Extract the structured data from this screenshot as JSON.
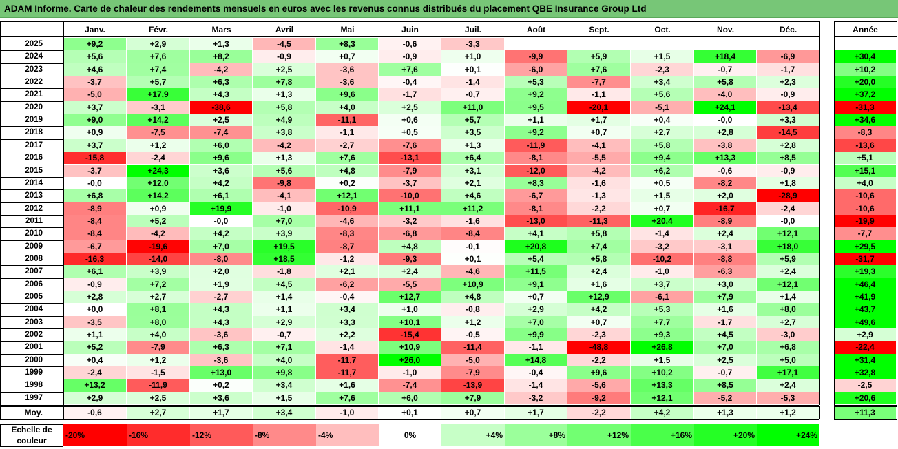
{
  "title": "ADAM Informe. Carte de chaleur des rendements mensuels en euros avec les revenus connus distribués du placement QBE Insurance Group Ltd",
  "chart_data": {
    "type": "heatmap",
    "columns": [
      "Janv.",
      "Févr.",
      "Mars",
      "Avril",
      "Mai",
      "Juin",
      "Juil.",
      "Août",
      "Sept.",
      "Oct.",
      "Nov.",
      "Déc."
    ],
    "year_column": "Année",
    "rows": [
      {
        "year": "2025",
        "values": [
          "+9,2",
          "+2,9",
          "+1,3",
          "-4,5",
          "+8,3",
          "-0,6",
          "-3,3",
          "",
          "",
          "",
          "",
          ""
        ],
        "annual": ""
      },
      {
        "year": "2024",
        "values": [
          "+5,6",
          "+7,6",
          "+8,2",
          "-0,9",
          "+0,7",
          "-0,9",
          "+1,0",
          "-9,9",
          "+5,9",
          "+1,5",
          "+18,4",
          "-6,9"
        ],
        "annual": "+30,4"
      },
      {
        "year": "2023",
        "values": [
          "+4,6",
          "+7,4",
          "-4,2",
          "+2,5",
          "-3,6",
          "+7,6",
          "+0,1",
          "-6,0",
          "+7,6",
          "-2,3",
          "-0,7",
          "-1,7"
        ],
        "annual": "+10,2"
      },
      {
        "year": "2022",
        "values": [
          "-3,7",
          "+5,7",
          "+6,3",
          "+7,8",
          "-3,6",
          "-0,4",
          "-1,4",
          "+5,3",
          "-7,7",
          "+3,4",
          "+5,8",
          "+2,3"
        ],
        "annual": "+20,0"
      },
      {
        "year": "2021",
        "values": [
          "-5,0",
          "+17,9",
          "+4,3",
          "+1,3",
          "+9,6",
          "-1,7",
          "-0,7",
          "+9,2",
          "-1,1",
          "+5,6",
          "-4,0",
          "-0,9"
        ],
        "annual": "+37,2"
      },
      {
        "year": "2020",
        "values": [
          "+3,7",
          "-3,1",
          "-38,6",
          "+5,8",
          "+4,0",
          "+2,5",
          "+11,0",
          "+9,5",
          "-20,1",
          "-5,1",
          "+24,1",
          "-13,4"
        ],
        "annual": "-31,3"
      },
      {
        "year": "2019",
        "values": [
          "+9,0",
          "+14,2",
          "+2,5",
          "+4,9",
          "-11,1",
          "+0,6",
          "+5,7",
          "+1,1",
          "+1,7",
          "+0,4",
          "-0,0",
          "+3,3"
        ],
        "annual": "+34,6"
      },
      {
        "year": "2018",
        "values": [
          "+0,9",
          "-7,5",
          "-7,4",
          "+3,8",
          "-1,1",
          "+0,5",
          "+3,5",
          "+9,2",
          "+0,7",
          "+2,7",
          "+2,8",
          "-14,5"
        ],
        "annual": "-8,3"
      },
      {
        "year": "2017",
        "values": [
          "+3,7",
          "+1,2",
          "+6,0",
          "-4,2",
          "-2,7",
          "-7,6",
          "+1,3",
          "-11,9",
          "-4,1",
          "+5,8",
          "-3,8",
          "+2,8"
        ],
        "annual": "-13,6"
      },
      {
        "year": "2016",
        "values": [
          "-15,8",
          "-2,4",
          "+9,6",
          "+1,3",
          "+7,6",
          "-13,1",
          "+6,4",
          "-8,1",
          "-5,5",
          "+9,4",
          "+13,3",
          "+8,5"
        ],
        "annual": "+5,1"
      },
      {
        "year": "2015",
        "values": [
          "-3,7",
          "+24,3",
          "+3,6",
          "+5,6",
          "+4,8",
          "-7,9",
          "+3,1",
          "-12,0",
          "-4,2",
          "+6,2",
          "-0,6",
          "-0,9"
        ],
        "annual": "+15,1"
      },
      {
        "year": "2014",
        "values": [
          "-0,0",
          "+12,0",
          "+4,2",
          "-9,8",
          "+0,2",
          "-3,7",
          "+2,1",
          "+8,3",
          "-1,6",
          "+0,5",
          "-8,2",
          "+1,8"
        ],
        "annual": "+4,0"
      },
      {
        "year": "2013",
        "values": [
          "+6,8",
          "+14,2",
          "+6,1",
          "-4,1",
          "+12,1",
          "-10,0",
          "+4,6",
          "-6,7",
          "-1,3",
          "+1,5",
          "+2,0",
          "-28,9"
        ],
        "annual": "-10,6"
      },
      {
        "year": "2012",
        "values": [
          "-8,9",
          "+0,9",
          "+19,9",
          "-1,0",
          "-10,9",
          "+11,1",
          "+11,2",
          "-8,1",
          "-2,2",
          "+0,7",
          "-16,7",
          "-2,4"
        ],
        "annual": "-10,6"
      },
      {
        "year": "2011",
        "values": [
          "-8,4",
          "+5,2",
          "-0,0",
          "+7,0",
          "-4,6",
          "-3,2",
          "-1,6",
          "-13,0",
          "-11,3",
          "+20,4",
          "-8,9",
          "-0,0"
        ],
        "annual": "-19,9"
      },
      {
        "year": "2010",
        "values": [
          "-8,4",
          "-4,2",
          "+4,2",
          "+3,9",
          "-8,3",
          "-6,8",
          "-8,4",
          "+4,1",
          "+5,8",
          "-1,4",
          "+2,4",
          "+12,1"
        ],
        "annual": "-7,7"
      },
      {
        "year": "2009",
        "values": [
          "-6,7",
          "-19,6",
          "+7,0",
          "+19,5",
          "-8,7",
          "+4,8",
          "-0,1",
          "+20,8",
          "+7,4",
          "-3,2",
          "-3,1",
          "+18,0"
        ],
        "annual": "+29,5"
      },
      {
        "year": "2008",
        "values": [
          "-16,3",
          "-14,0",
          "-8,0",
          "+18,5",
          "-1,2",
          "-9,3",
          "+0,1",
          "+5,4",
          "+5,8",
          "-10,2",
          "-8,8",
          "+5,9"
        ],
        "annual": "-31,7"
      },
      {
        "year": "2007",
        "values": [
          "+6,1",
          "+3,9",
          "+2,0",
          "-1,8",
          "+2,1",
          "+2,4",
          "-4,6",
          "+11,5",
          "+2,4",
          "-1,0",
          "-6,3",
          "+2,4"
        ],
        "annual": "+19,3"
      },
      {
        "year": "2006",
        "values": [
          "-0,9",
          "+7,2",
          "+1,9",
          "+4,5",
          "-6,2",
          "-5,5",
          "+10,9",
          "+9,1",
          "+1,6",
          "+3,7",
          "+3,0",
          "+12,1"
        ],
        "annual": "+46,4"
      },
      {
        "year": "2005",
        "values": [
          "+2,8",
          "+2,7",
          "-2,7",
          "+1,4",
          "-0,4",
          "+12,7",
          "+4,8",
          "+0,7",
          "+12,9",
          "-6,1",
          "+7,9",
          "+1,4"
        ],
        "annual": "+41,9"
      },
      {
        "year": "2004",
        "values": [
          "+0,0",
          "+8,1",
          "+4,3",
          "+1,1",
          "+3,4",
          "+1,0",
          "-0,8",
          "+2,9",
          "+4,2",
          "+5,3",
          "+1,6",
          "+8,0"
        ],
        "annual": "+43,7"
      },
      {
        "year": "2003",
        "values": [
          "-3,5",
          "+8,0",
          "+4,3",
          "+2,9",
          "+3,3",
          "+10,1",
          "+1,2",
          "+7,0",
          "+0,7",
          "+7,7",
          "-1,7",
          "+2,7"
        ],
        "annual": "+49,6"
      },
      {
        "year": "2002",
        "values": [
          "+1,1",
          "+4,0",
          "-3,6",
          "-0,7",
          "+2,2",
          "-15,4",
          "-0,5",
          "+9,9",
          "-2,3",
          "+9,3",
          "+4,5",
          "-3,0"
        ],
        "annual": "+2,9"
      },
      {
        "year": "2001",
        "values": [
          "+5,2",
          "-7,9",
          "+6,3",
          "+7,1",
          "-1,4",
          "+10,9",
          "-11,4",
          "-1,1",
          "-48,8",
          "+26,8",
          "+7,0",
          "+6,8"
        ],
        "annual": "-22,4"
      },
      {
        "year": "2000",
        "values": [
          "+0,4",
          "+1,2",
          "-3,6",
          "+4,0",
          "-11,7",
          "+26,0",
          "-5,0",
          "+14,8",
          "-2,2",
          "+1,5",
          "+2,5",
          "+5,0"
        ],
        "annual": "+31,4"
      },
      {
        "year": "1999",
        "values": [
          "-2,4",
          "-1,5",
          "+13,0",
          "+9,8",
          "-11,7",
          "-1,0",
          "-7,9",
          "-0,4",
          "+9,6",
          "+10,2",
          "-0,7",
          "+17,1"
        ],
        "annual": "+32,8"
      },
      {
        "year": "1998",
        "values": [
          "+13,2",
          "-11,9",
          "+0,2",
          "+3,4",
          "+1,6",
          "-7,4",
          "-13,9",
          "-1,4",
          "-5,6",
          "+13,3",
          "+8,5",
          "+2,4"
        ],
        "annual": "-2,5"
      },
      {
        "year": "1997",
        "values": [
          "+2,9",
          "+2,5",
          "+3,6",
          "+1,5",
          "+7,6",
          "+6,0",
          "+7,9",
          "-3,2",
          "-9,2",
          "+12,1",
          "-5,2",
          "-5,3"
        ],
        "annual": "+20,6"
      }
    ],
    "average": {
      "label": "Moy.",
      "values": [
        "-0,6",
        "+2,7",
        "+1,7",
        "+3,4",
        "-1,0",
        "+0,1",
        "+0,7",
        "+1,7",
        "-2,2",
        "+4,2",
        "+1,3",
        "+1,2"
      ],
      "annual": "+11,3"
    },
    "scale": {
      "label_line1": "Echelle de",
      "label_line2": "couleur",
      "stops": [
        {
          "label": "-20%",
          "value": -20
        },
        {
          "label": "-16%",
          "value": -16
        },
        {
          "label": "-12%",
          "value": -12
        },
        {
          "label": "-8%",
          "value": -8
        },
        {
          "label": "-4%",
          "value": -4
        },
        {
          "label": "0%",
          "value": 0
        },
        {
          "label": "+4%",
          "value": 4
        },
        {
          "label": "+8%",
          "value": 8
        },
        {
          "label": "+12%",
          "value": 12
        },
        {
          "label": "+16%",
          "value": 16
        },
        {
          "label": "+20%",
          "value": 20
        },
        {
          "label": "+24%",
          "value": 24
        }
      ]
    },
    "colors": {
      "negative_max": "#ff0000",
      "neutral": "#ffffff",
      "positive_max": "#00ff00"
    }
  }
}
